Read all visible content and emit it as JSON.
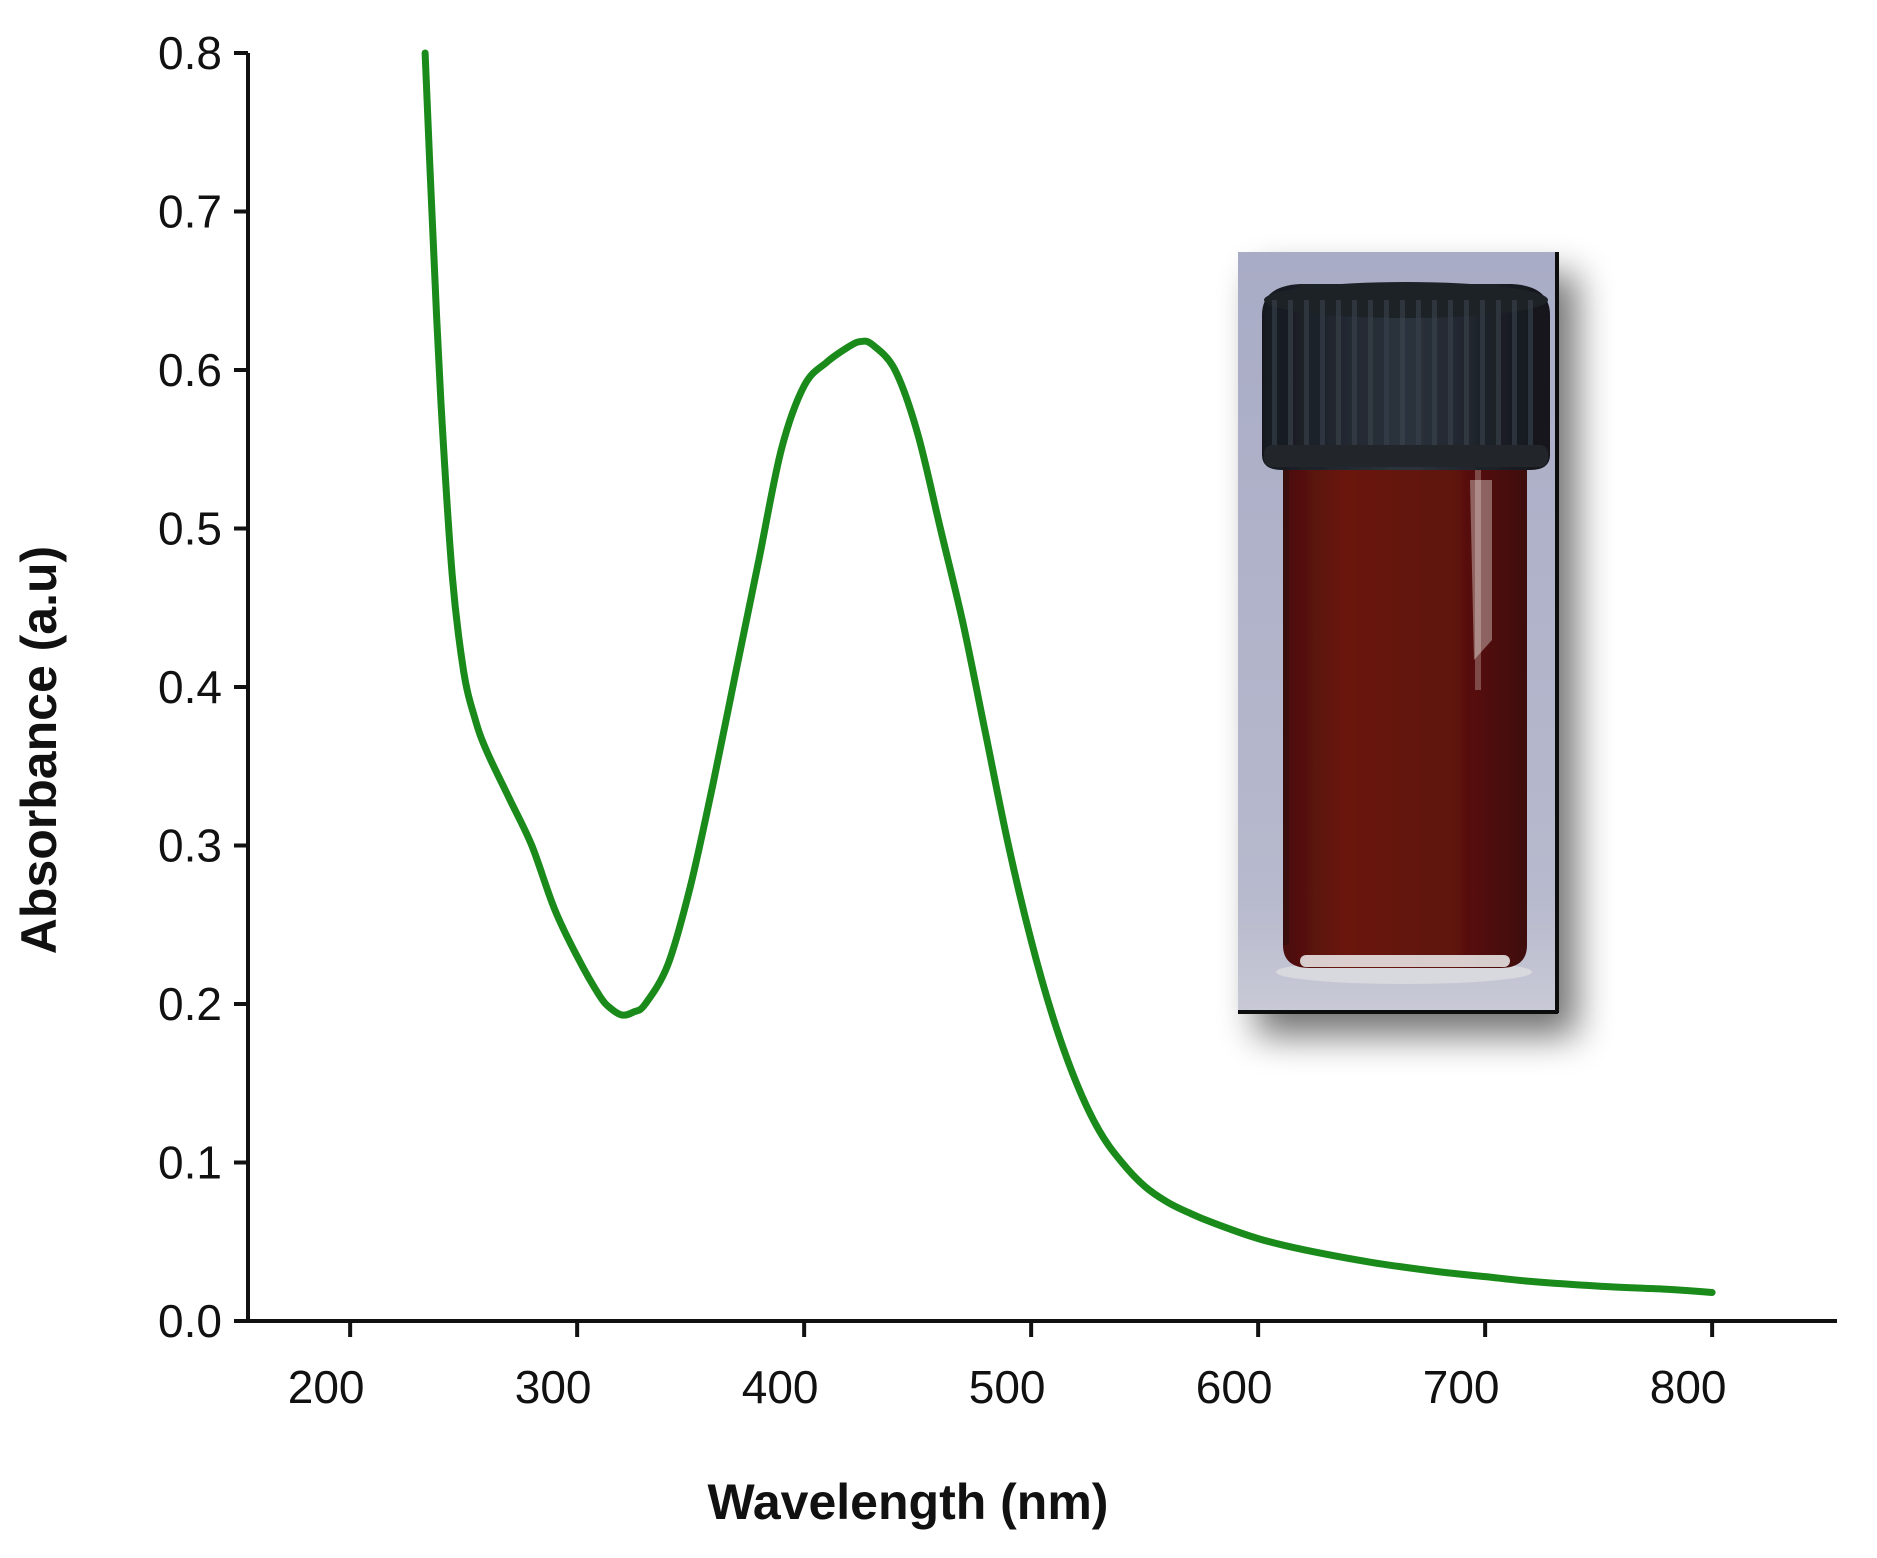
{
  "chart_data": {
    "type": "line",
    "title": "",
    "xlabel": "Wavelength (nm)",
    "ylabel": "Absorbance (a.u)",
    "xlim": [
      155,
      855
    ],
    "ylim": [
      0,
      0.8
    ],
    "xticks": [
      200,
      300,
      400,
      500,
      600,
      700,
      800
    ],
    "yticks": [
      0.0,
      0.1,
      0.2,
      0.3,
      0.4,
      0.5,
      0.6,
      0.7,
      0.8
    ],
    "ytick_labels": [
      "0.0",
      "0.1",
      "0.2",
      "0.3",
      "0.4",
      "0.5",
      "0.6",
      "0.7",
      "0.8"
    ],
    "grid": false,
    "legend": "none",
    "colors": {
      "line": "#1a8a1a",
      "axis": "#111111"
    },
    "inset": "photo of a capped glass vial containing dark red liquid",
    "series": [
      {
        "x": [
          233,
          236,
          240,
          245,
          250,
          255,
          260,
          270,
          280,
          290,
          300,
          310,
          315,
          320,
          325,
          330,
          340,
          350,
          360,
          370,
          380,
          390,
          400,
          410,
          420,
          425,
          430,
          440,
          450,
          460,
          470,
          480,
          490,
          500,
          510,
          520,
          530,
          540,
          550,
          560,
          570,
          580,
          600,
          620,
          650,
          680,
          700,
          720,
          750,
          780,
          800
        ],
        "y": [
          0.8,
          0.7,
          0.58,
          0.47,
          0.41,
          0.38,
          0.36,
          0.33,
          0.3,
          0.26,
          0.23,
          0.205,
          0.197,
          0.193,
          0.195,
          0.2,
          0.225,
          0.275,
          0.34,
          0.41,
          0.48,
          0.55,
          0.59,
          0.605,
          0.615,
          0.618,
          0.616,
          0.6,
          0.56,
          0.5,
          0.44,
          0.37,
          0.3,
          0.24,
          0.19,
          0.15,
          0.12,
          0.1,
          0.085,
          0.075,
          0.068,
          0.062,
          0.052,
          0.045,
          0.037,
          0.031,
          0.028,
          0.025,
          0.022,
          0.02,
          0.018
        ]
      }
    ]
  }
}
